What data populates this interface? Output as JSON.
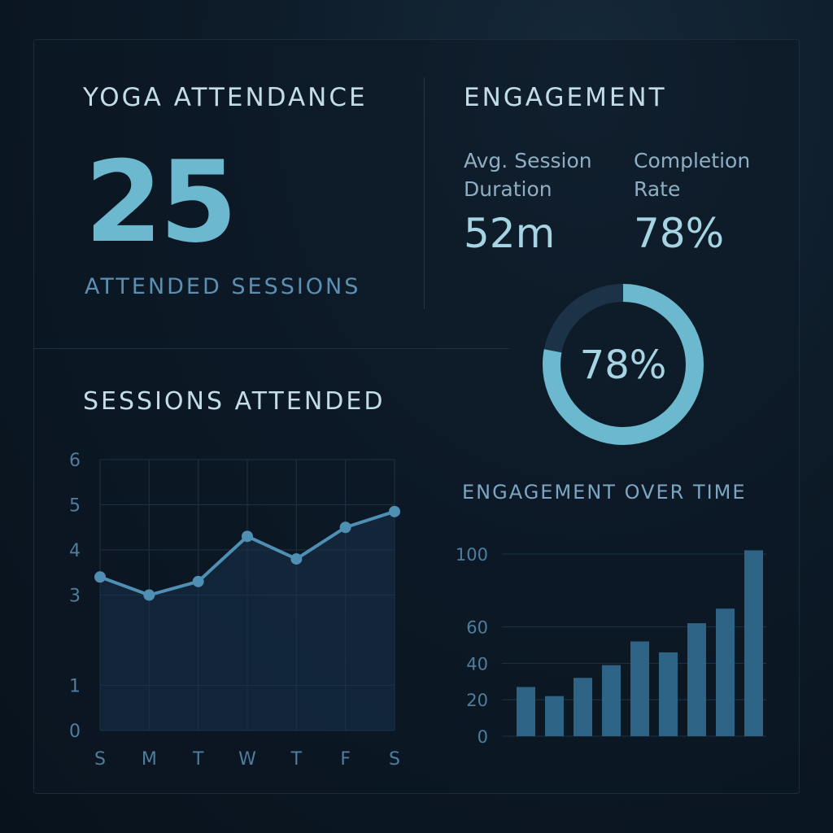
{
  "attendance": {
    "title": "YOGA ATTENDANCE",
    "value": "25",
    "caption": "ATTENDED SESSIONS"
  },
  "engagement": {
    "title": "ENGAGEMENT",
    "avg_session_label": "Avg. Session Duration",
    "avg_session_value": "52m",
    "completion_label": "Completion Rate",
    "completion_value": "78%"
  },
  "colors": {
    "accent": "#6cb9cf",
    "line": "#4f8fb4",
    "bar": "#2d6385",
    "ring_track": "#1c3246",
    "grid": "#1e3244",
    "tick": "#4e7d9e"
  },
  "chart_data": [
    {
      "type": "line",
      "title": "SESSIONS ATTENDED",
      "x": [
        "S",
        "M",
        "T",
        "W",
        "T",
        "F",
        "S"
      ],
      "y_ticks": [
        0,
        1,
        3,
        4,
        5,
        6
      ],
      "ylim": [
        0,
        6
      ],
      "series": [
        {
          "values": [
            3.4,
            3.0,
            3.3,
            4.3,
            3.8,
            4.5,
            4.85
          ]
        }
      ],
      "grid": true
    },
    {
      "type": "pie",
      "subtype": "donut",
      "label": "78%",
      "values": [
        78,
        22
      ]
    },
    {
      "type": "bar",
      "title": "ENGAGEMENT OVER TIME",
      "y_ticks": [
        0,
        20,
        40,
        60,
        100
      ],
      "ylim": [
        0,
        100
      ],
      "values": [
        27,
        22,
        32,
        39,
        52,
        46,
        62,
        70,
        102
      ],
      "grid": true
    }
  ]
}
